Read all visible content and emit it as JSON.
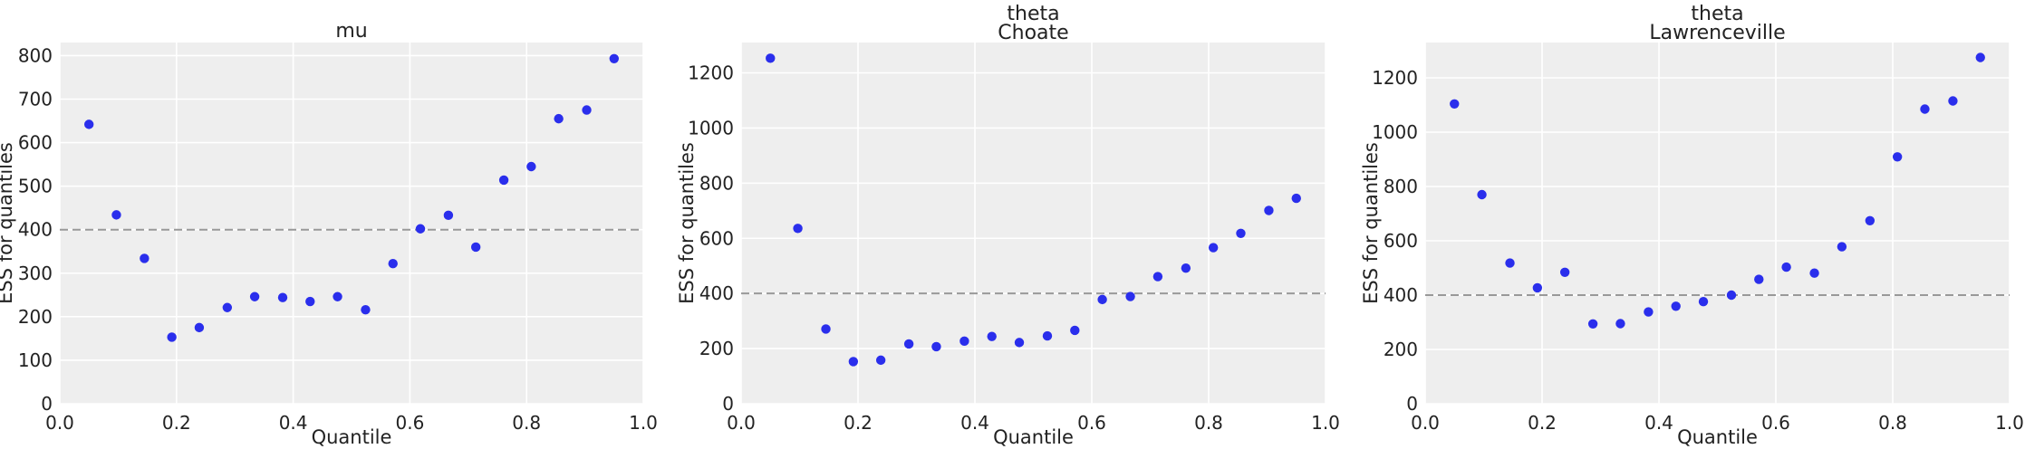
{
  "chart_data": [
    {
      "type": "scatter",
      "title_lines": [
        "mu"
      ],
      "xlabel": "Quantile",
      "ylabel": "ESS for quantiles",
      "xlim": [
        0,
        1
      ],
      "ylim": [
        0,
        830
      ],
      "xticks": [
        0.0,
        0.2,
        0.4,
        0.6,
        0.8,
        1.0
      ],
      "xtick_labels": [
        "0.0",
        "0.2",
        "0.4",
        "0.6",
        "0.8",
        "1.0"
      ],
      "yticks": [
        0,
        100,
        200,
        300,
        400,
        500,
        600,
        700,
        800
      ],
      "ytick_labels": [
        "0",
        "100",
        "200",
        "300",
        "400",
        "500",
        "600",
        "700",
        "800"
      ],
      "reference_line": 400,
      "grid": true,
      "color": "#2a2eec",
      "x": [
        0.05,
        0.097,
        0.145,
        0.192,
        0.239,
        0.287,
        0.334,
        0.382,
        0.429,
        0.476,
        0.524,
        0.571,
        0.618,
        0.666,
        0.713,
        0.761,
        0.808,
        0.855,
        0.903,
        0.95
      ],
      "y": [
        642,
        434,
        334,
        153,
        175,
        221,
        246,
        244,
        235,
        246,
        216,
        322,
        402,
        433,
        360,
        514,
        545,
        655,
        675,
        793
      ]
    },
    {
      "type": "scatter",
      "title_lines": [
        "theta",
        "Choate"
      ],
      "xlabel": "Quantile",
      "ylabel": "ESS for quantiles",
      "xlim": [
        0,
        1
      ],
      "ylim": [
        0,
        1310
      ],
      "xticks": [
        0.0,
        0.2,
        0.4,
        0.6,
        0.8,
        1.0
      ],
      "xtick_labels": [
        "0.0",
        "0.2",
        "0.4",
        "0.6",
        "0.8",
        "1.0"
      ],
      "yticks": [
        0,
        200,
        400,
        600,
        800,
        1000,
        1200
      ],
      "ytick_labels": [
        "0",
        "200",
        "400",
        "600",
        "800",
        "1000",
        "1200"
      ],
      "reference_line": 400,
      "grid": true,
      "color": "#2a2eec",
      "x": [
        0.05,
        0.097,
        0.145,
        0.192,
        0.239,
        0.287,
        0.334,
        0.382,
        0.429,
        0.476,
        0.524,
        0.571,
        0.618,
        0.666,
        0.713,
        0.761,
        0.808,
        0.855,
        0.903,
        0.95
      ],
      "y": [
        1253,
        636,
        271,
        153,
        158,
        217,
        207,
        227,
        244,
        222,
        246,
        266,
        378,
        389,
        461,
        492,
        566,
        618,
        701,
        745
      ]
    },
    {
      "type": "scatter",
      "title_lines": [
        "theta",
        "Lawrenceville"
      ],
      "xlabel": "Quantile",
      "ylabel": "ESS for quantiles",
      "xlim": [
        0,
        1
      ],
      "ylim": [
        0,
        1330
      ],
      "xticks": [
        0.0,
        0.2,
        0.4,
        0.6,
        0.8,
        1.0
      ],
      "xtick_labels": [
        "0.0",
        "0.2",
        "0.4",
        "0.6",
        "0.8",
        "1.0"
      ],
      "yticks": [
        0,
        200,
        400,
        600,
        800,
        1000,
        1200
      ],
      "ytick_labels": [
        "0",
        "200",
        "400",
        "600",
        "800",
        "1000",
        "1200"
      ],
      "reference_line": 400,
      "grid": true,
      "color": "#2a2eec",
      "x": [
        0.05,
        0.097,
        0.145,
        0.192,
        0.239,
        0.287,
        0.334,
        0.382,
        0.429,
        0.476,
        0.524,
        0.571,
        0.618,
        0.666,
        0.713,
        0.761,
        0.808,
        0.855,
        0.903,
        0.95
      ],
      "y": [
        1104,
        770,
        518,
        427,
        484,
        294,
        295,
        338,
        359,
        376,
        400,
        458,
        503,
        481,
        578,
        674,
        909,
        1085,
        1115,
        1275
      ]
    }
  ]
}
